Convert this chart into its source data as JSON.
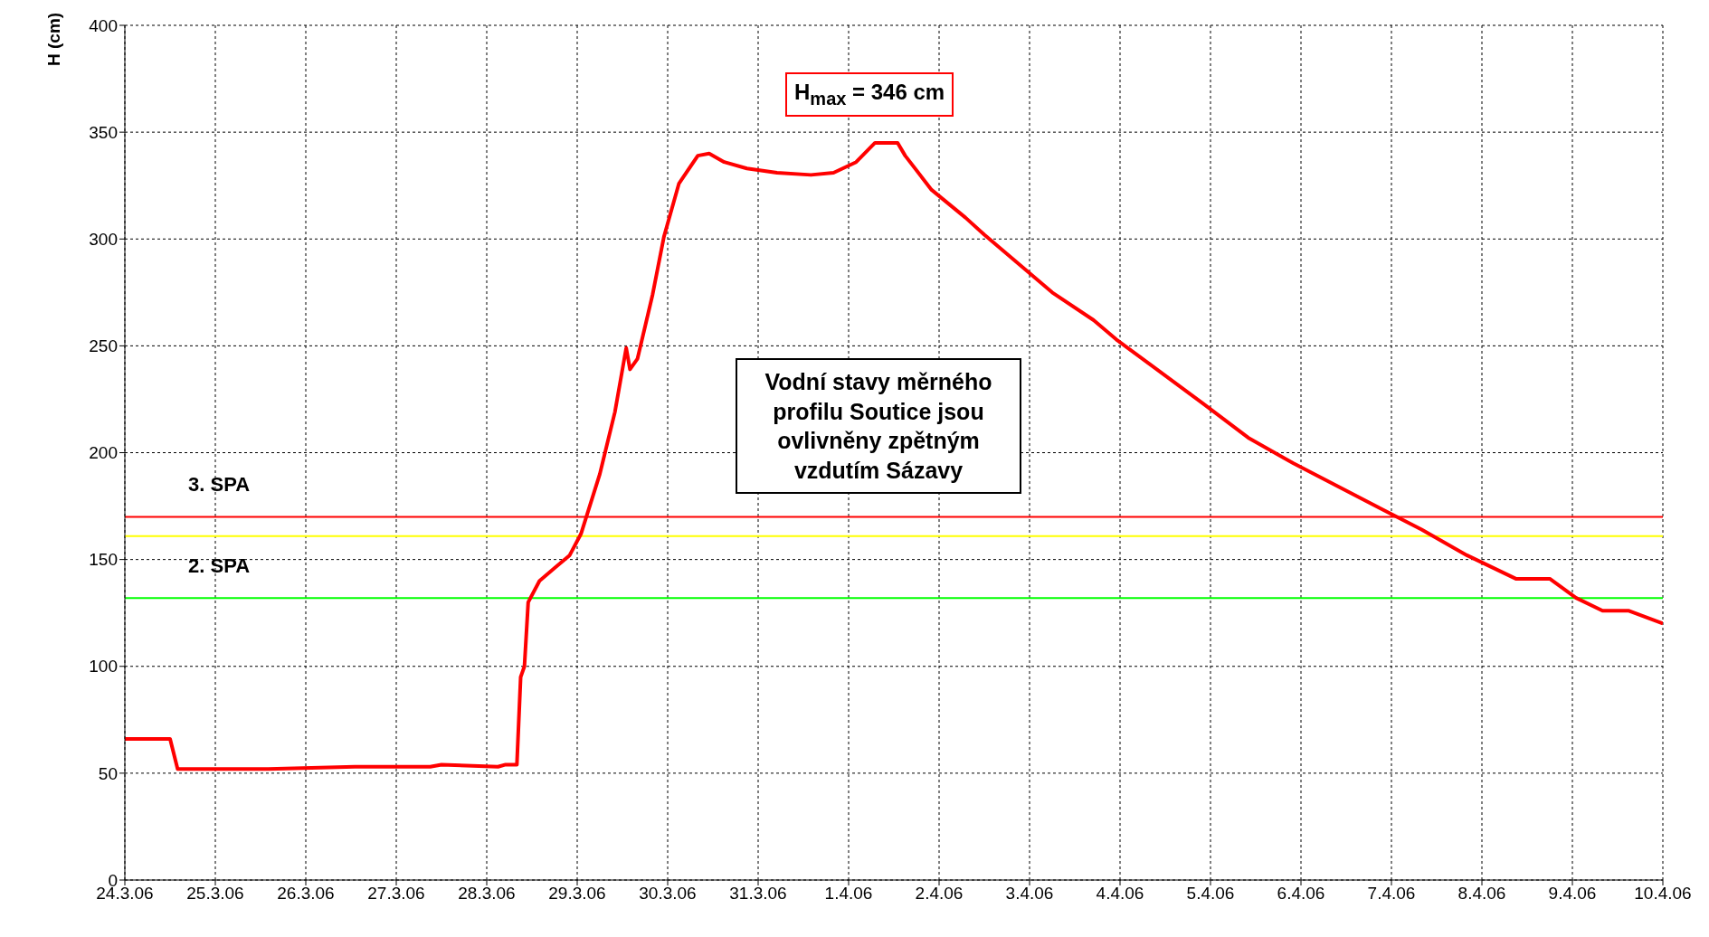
{
  "chart_data": {
    "type": "line",
    "ylabel": "H (cm)",
    "x": [
      "--03-24T00:00",
      "--03-24T12:00",
      "--03-24T14:00",
      "--03-25T02:00",
      "--03-25T14:00",
      "--03-26T13:00",
      "--03-27T09:00",
      "--03-27T12:00",
      "--03-28T03:00",
      "--03-28T05:00",
      "--03-28T08:00",
      "--03-28T09:00",
      "--03-28T10:00",
      "--03-28T11:00",
      "--03-28T14:00",
      "--03-28T18:00",
      "--03-28T22:00",
      "--03-29T01:00",
      "--03-29T06:00",
      "--03-29T10:00",
      "--03-29T13:00",
      "--03-29T14:00",
      "--03-29T16:00",
      "--03-29T20:00",
      "--03-29T23:00",
      "--03-30T03:00",
      "--03-30T08:00",
      "--03-30T11:00",
      "--03-30T15:00",
      "--03-30T21:00",
      "--03-31T05:00",
      "--03-31T14:00",
      "--03-31T20:00",
      "--04-01T02:00",
      "--04-01T07:00",
      "--04-01T13:00",
      "--04-01T15:00",
      "--04-01T22:00",
      "--04-02T07:00",
      "--04-02T12:00",
      "--04-03T00:00",
      "--04-03T06:00",
      "--04-03T17:00",
      "--04-03T23:00",
      "--04-04T22:00",
      "--04-05T10:00",
      "--04-05T22:00",
      "--04-06T21:00",
      "--04-07T08:00",
      "--04-07T20:00",
      "--04-08T09:00",
      "--04-08T18:00",
      "--04-09T01:00",
      "--04-09T08:00",
      "--04-09T15:00",
      "--04-10T00:00"
    ],
    "series": [
      {
        "color": "#ff0000",
        "values": [
          66,
          66,
          52,
          52,
          52,
          53,
          53,
          54,
          53,
          54,
          54,
          95,
          100,
          130,
          140,
          146,
          152,
          162,
          190,
          219,
          249,
          239,
          244,
          274,
          301,
          326,
          339,
          340,
          336,
          333,
          331,
          330,
          331,
          336,
          345,
          345,
          339,
          323,
          310,
          302,
          284,
          275,
          262,
          253,
          223,
          207,
          195,
          174,
          164,
          152,
          141,
          141,
          132,
          126,
          126,
          120
        ]
      }
    ],
    "xlim": [
      "--03-24T00:00",
      "--04-10T00:00"
    ],
    "xticks": [
      {
        "value": "--03-24",
        "label": "24.3.06"
      },
      {
        "value": "--03-25",
        "label": "25.3.06"
      },
      {
        "value": "--03-26",
        "label": "26.3.06"
      },
      {
        "value": "--03-27",
        "label": "27.3.06"
      },
      {
        "value": "--03-28",
        "label": "28.3.06"
      },
      {
        "value": "--03-29",
        "label": "29.3.06"
      },
      {
        "value": "--03-30",
        "label": "30.3.06"
      },
      {
        "value": "--03-31",
        "label": "31.3.06"
      },
      {
        "value": "--04-01",
        "label": "1.4.06"
      },
      {
        "value": "--04-02",
        "label": "2.4.06"
      },
      {
        "value": "--04-03",
        "label": "3.4.06"
      },
      {
        "value": "--04-04",
        "label": "4.4.06"
      },
      {
        "value": "--04-05",
        "label": "5.4.06"
      },
      {
        "value": "--04-06",
        "label": "6.4.06"
      },
      {
        "value": "--04-07",
        "label": "7.4.06"
      },
      {
        "value": "--04-08",
        "label": "8.4.06"
      },
      {
        "value": "--04-09",
        "label": "9.4.06"
      },
      {
        "value": "--04-10",
        "label": "10.4.06"
      }
    ],
    "ylim": [
      0,
      400
    ],
    "yticks": [
      0,
      50,
      100,
      150,
      200,
      250,
      300,
      350,
      400
    ],
    "ref_lines": [
      {
        "axis": "y",
        "value": 170,
        "label": "3. SPA",
        "color": "#ff0000"
      },
      {
        "axis": "y",
        "value": 161,
        "color": "#ffff00"
      },
      {
        "axis": "y",
        "value": 132,
        "label": "2. SPA",
        "color": "#00ff00"
      }
    ],
    "annotations": [
      "H$_{max}$ = 346 cm",
      "Vodní stavy měrného profilu Soutice jsou ovlivněny zpětným vzdutím Sázavy"
    ],
    "grid": true,
    "marker": "none",
    "line_style": "solid"
  }
}
